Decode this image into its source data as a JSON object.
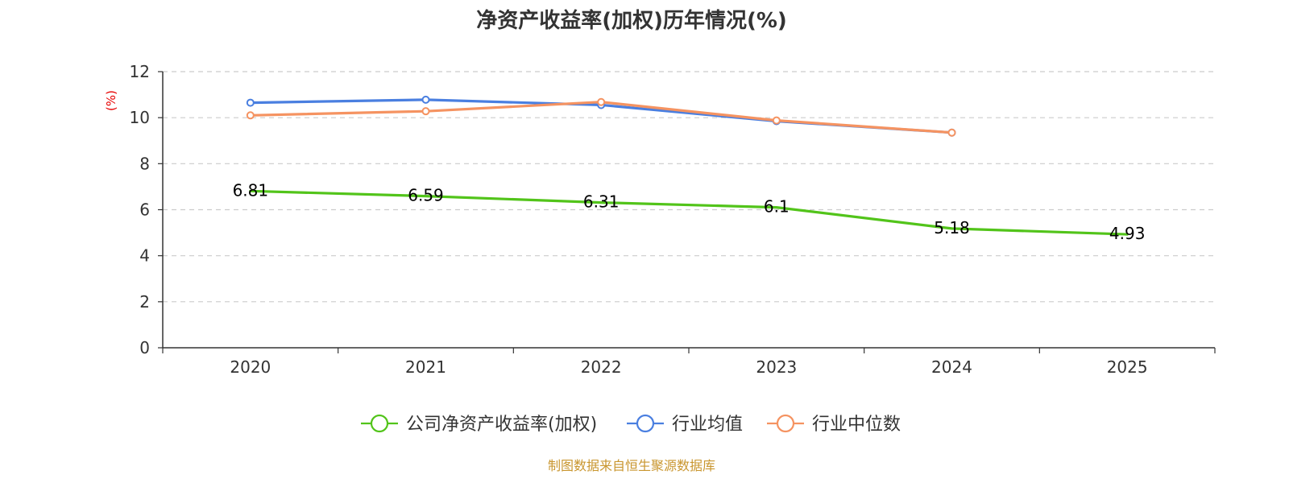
{
  "chart_data": {
    "type": "line",
    "title": "净资产收益率(加权)历年情况(%)",
    "ylabel": "(%)",
    "xlabel": "",
    "categories": [
      "2020",
      "2021",
      "2022",
      "2023",
      "2024",
      "2025"
    ],
    "ylim": [
      0,
      12
    ],
    "yticks": [
      0,
      2,
      4,
      6,
      8,
      10,
      12
    ],
    "grid": true,
    "legend_position": "bottom-center",
    "series": [
      {
        "name": "公司净资产收益率(加权)",
        "color": "#52c41a",
        "values": [
          6.81,
          6.59,
          6.31,
          6.1,
          5.18,
          4.93
        ],
        "labels": true,
        "markers": false
      },
      {
        "name": "行业均值",
        "color": "#4a7fe0",
        "values": [
          10.65,
          10.78,
          10.55,
          9.85,
          9.35,
          null
        ],
        "labels": false,
        "markers": true
      },
      {
        "name": "行业中位数",
        "color": "#f59361",
        "values": [
          10.1,
          10.28,
          10.68,
          9.88,
          9.35,
          null
        ],
        "labels": false,
        "markers": true
      }
    ],
    "source": "制图数据来自恒生聚源数据库"
  }
}
